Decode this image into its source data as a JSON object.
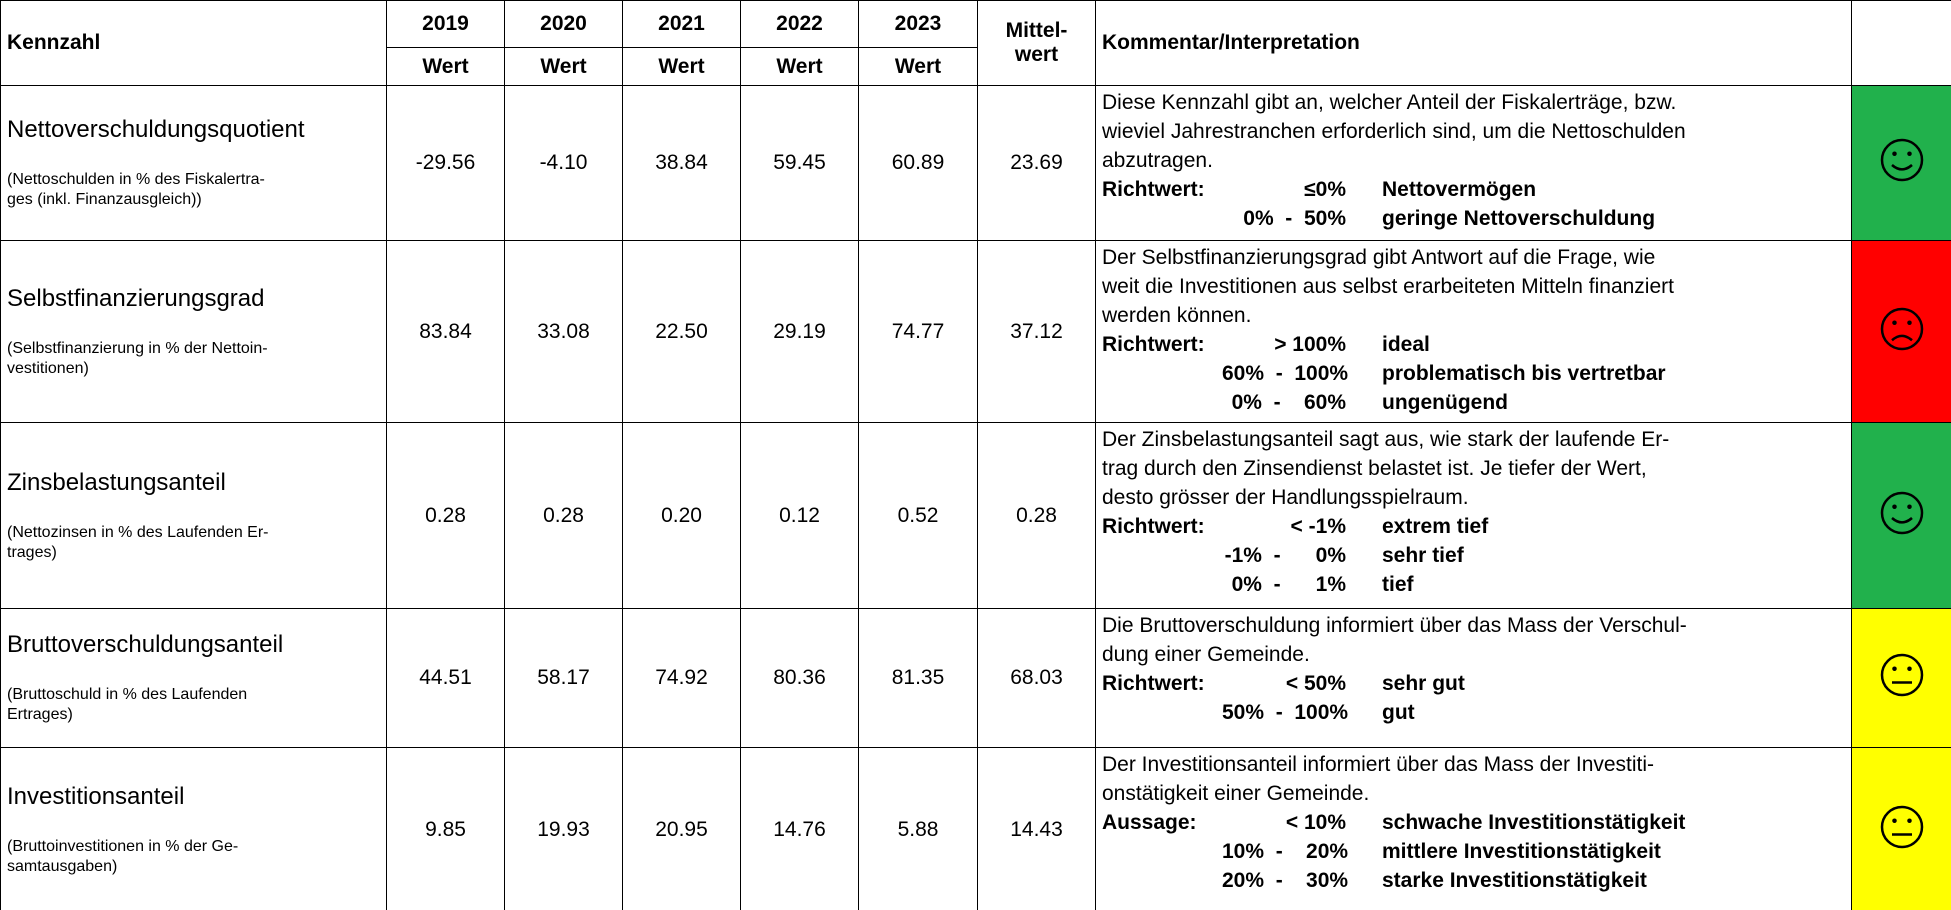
{
  "header": {
    "kennzahl": "Kennzahl",
    "years": [
      "2019",
      "2020",
      "2021",
      "2022",
      "2023"
    ],
    "wert": [
      "Wert",
      "Wert",
      "Wert",
      "Wert",
      "Wert"
    ],
    "mittelwert": "Mittel-\nwert",
    "kommentar": "Kommentar/Interpretation"
  },
  "rows": [
    {
      "name": "Nettoverschuldungsquotient",
      "note": "(Nettoschulden in % des Fiskalertra-\nges (inkl. Finanzausgleich))",
      "values": [
        "-29.56",
        "-4.10",
        "38.84",
        "59.45",
        "60.89",
        "23.69"
      ],
      "comment": "Diese Kennzahl gibt an, welcher Anteil der Fiskalerträge, bzw.\nwieviel Jahrestranchen erforderlich sind, um die Nettoschulden\nabzutragen.",
      "label": "Richtwert:",
      "guide": [
        {
          "range": "≤0%",
          "text": "Nettovermögen"
        },
        {
          "range": "0%  -  50%",
          "text": "geringe Nettoverschuldung"
        }
      ],
      "color": "#21b14c"
    },
    {
      "name": "Selbstfinanzierungsgrad",
      "note": "(Selbstfinanzierung in % der Nettoin-\nvestitionen)",
      "values": [
        "83.84",
        "33.08",
        "22.50",
        "29.19",
        "74.77",
        "37.12"
      ],
      "comment": "Der Selbstfinanzierungsgrad gibt Antwort auf die Frage, wie\nweit die Investitionen aus selbst erarbeiteten Mitteln finanziert\nwerden können.",
      "label": "Richtwert:",
      "guide": [
        {
          "range": "> 100%",
          "text": "ideal"
        },
        {
          "range": "60%  -  100%",
          "text": "problematisch bis vertretbar"
        },
        {
          "range": "0%  -    60%",
          "text": "ungenügend"
        }
      ],
      "color": "#ff0000"
    },
    {
      "name": "Zinsbelastungsanteil",
      "note": "(Nettozinsen in % des Laufenden Er-\ntrages)",
      "values": [
        "0.28",
        "0.28",
        "0.20",
        "0.12",
        "0.52",
        "0.28"
      ],
      "comment": "Der Zinsbelastungsanteil sagt aus, wie stark der laufende Er-\ntrag durch den Zinsendienst belastet ist. Je tiefer der Wert,\ndesto grösser der Handlungsspielraum.",
      "label": "Richtwert:",
      "guide": [
        {
          "range": "< -1%",
          "text": "extrem tief"
        },
        {
          "range": "-1%  -      0%",
          "text": "sehr tief"
        },
        {
          "range": "0%  -      1%",
          "text": "tief"
        }
      ],
      "color": "#21b14c"
    },
    {
      "name": "Bruttoverschuldungsanteil",
      "note": "(Bruttoschuld in % des Laufenden\nErtrages)",
      "values": [
        "44.51",
        "58.17",
        "74.92",
        "80.36",
        "81.35",
        "68.03"
      ],
      "comment": "Die Bruttoverschuldung informiert über das Mass der Verschul-\ndung einer Gemeinde.",
      "label": "Richtwert:",
      "guide": [
        {
          "range": "< 50%",
          "text": "sehr gut"
        },
        {
          "range": "50%  -  100%",
          "text": "gut"
        }
      ],
      "color": "#ffff00"
    },
    {
      "name": "Investitionsanteil",
      "note": "(Bruttoinvestitionen in % der Ge-\nsamtausgaben)",
      "values": [
        "9.85",
        "19.93",
        "20.95",
        "14.76",
        "5.88",
        "14.43"
      ],
      "comment": "Der Investitionsanteil informiert über das Mass der Investiti-\nonstätigkeit einer Gemeinde.",
      "label": "Aussage:",
      "guide": [
        {
          "range": "< 10%",
          "text": "schwache Investitionstätigkeit"
        },
        {
          "range": "10%  -    20%",
          "text": "mittlere Investitionstätigkeit"
        },
        {
          "range": "20%  -    30%",
          "text": "starke Investitionstätigkeit"
        }
      ],
      "color": "#ffff00"
    }
  ]
}
